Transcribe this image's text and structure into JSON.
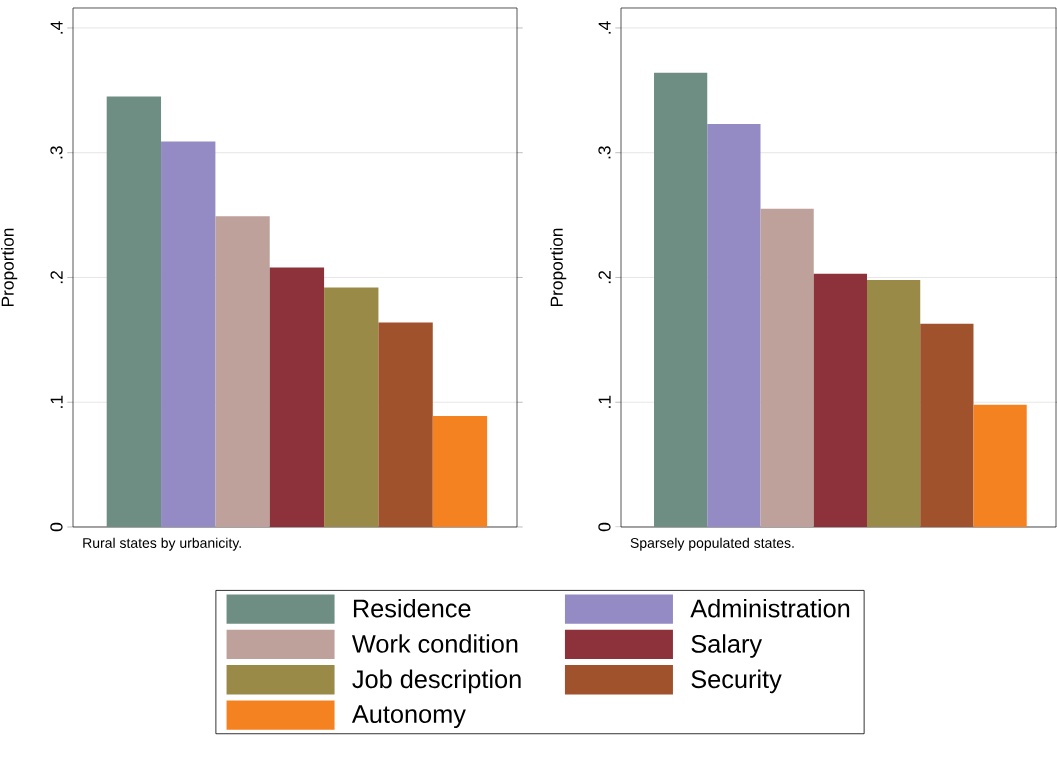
{
  "chart_data": [
    {
      "type": "bar",
      "categories": [
        null
      ],
      "ylabel": "Proportion",
      "ylim": [
        0,
        0.416
      ],
      "yticks": [
        {
          "value": 0,
          "label": "0"
        },
        {
          "value": 0.1,
          "label": ".1"
        },
        {
          "value": 0.2,
          "label": ".2"
        },
        {
          "value": 0.3,
          "label": ".3"
        },
        {
          "value": 0.4,
          "label": ".4"
        }
      ],
      "grid": "y",
      "legend": "bottom",
      "annotations": [
        "Rural states by urbanicity."
      ],
      "series": [
        {
          "name": "Residence",
          "color": "#6e8e84",
          "values": [
            0.345
          ]
        },
        {
          "name": "Administration",
          "color": "#948ac4",
          "values": [
            0.309
          ]
        },
        {
          "name": "Work condition",
          "color": "#bfa19b",
          "values": [
            0.249
          ]
        },
        {
          "name": "Salary",
          "color": "#8d313b",
          "values": [
            0.208
          ]
        },
        {
          "name": "Job description",
          "color": "#9a8a47",
          "values": [
            0.192
          ]
        },
        {
          "name": "Security",
          "color": "#a0522d",
          "values": [
            0.164
          ]
        },
        {
          "name": "Autonomy",
          "color": "#f58220",
          "values": [
            0.089
          ]
        }
      ]
    },
    {
      "type": "bar",
      "categories": [
        null
      ],
      "ylabel": "Proportion",
      "ylim": [
        0,
        0.416
      ],
      "yticks": [
        {
          "value": 0,
          "label": "0"
        },
        {
          "value": 0.1,
          "label": ".1"
        },
        {
          "value": 0.2,
          "label": ".2"
        },
        {
          "value": 0.3,
          "label": ".3"
        },
        {
          "value": 0.4,
          "label": ".4"
        }
      ],
      "grid": "y",
      "annotations": [
        "Sparsely populated states."
      ],
      "series": [
        {
          "color": "#6e8e84",
          "values": [
            0.364
          ]
        },
        {
          "color": "#948ac4",
          "values": [
            0.323
          ]
        },
        {
          "color": "#bfa19b",
          "values": [
            0.255
          ]
        },
        {
          "color": "#8d313b",
          "values": [
            0.203
          ]
        },
        {
          "color": "#9a8a47",
          "values": [
            0.198
          ]
        },
        {
          "color": "#a0522d",
          "values": [
            0.163
          ]
        },
        {
          "color": "#f58220",
          "values": [
            0.098
          ]
        }
      ]
    }
  ]
}
